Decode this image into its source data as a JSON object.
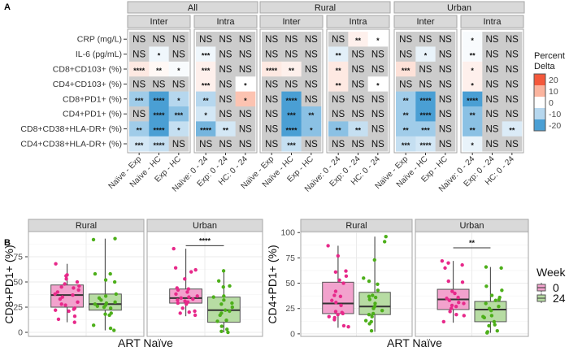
{
  "panel_labels": {
    "a": "A",
    "b": "B"
  },
  "colors": {
    "ns": "#cccccc",
    "neg20": "#4a9fd4",
    "neg10": "#b6d7ee",
    "zero": "#ffffff",
    "pos10": "#fbb49e",
    "pos20": "#f4583b",
    "week0_point": "#e7298a",
    "week0_box": "#f2a2cd",
    "week24_point": "#4daf1a",
    "week24_box": "#b7dca3"
  },
  "chart_data": [
    {
      "type": "heatmap",
      "title": "",
      "rows": [
        "CRP (mg/L)",
        "IL-6 (pg/mL)",
        "CD8+CD103+ (%)",
        "CD4+CD103+ (%)",
        "CD8+PD1+ (%)",
        "CD4+PD1+ (%)",
        "CD8+CD38+HLA-DR+ (%)",
        "CD4+CD38+HLA-DR+ (%)"
      ],
      "legend": {
        "title_line1": "Percent",
        "title_line2": "Delta",
        "ticks": [
          "20",
          "10",
          "0",
          "-10",
          "-20"
        ],
        "placement": "right"
      },
      "facets": [
        {
          "name": "All",
          "groups": [
            {
              "name": "Inter",
              "columns": [
                "Naïve - Exp",
                "Naïve - HC",
                "Exp - HC"
              ],
              "sig": [
                [
                  "NS",
                  "NS",
                  "NS"
                ],
                [
                  "NS",
                  "*",
                  "NS"
                ],
                [
                  "****",
                  "**",
                  "*"
                ],
                [
                  "NS",
                  "NS",
                  "NS"
                ],
                [
                  "***",
                  "****",
                  "*"
                ],
                [
                  "NS",
                  "****",
                  "***"
                ],
                [
                  "**",
                  "****",
                  "*"
                ],
                [
                  "***",
                  "****",
                  "NS"
                ]
              ],
              "delta": [
                [
                  null,
                  null,
                  null
                ],
                [
                  null,
                  -2,
                  null
                ],
                [
                  3,
                  1,
                  -1
                ],
                [
                  null,
                  null,
                  null
                ],
                [
                  -12,
                  -22,
                  -10
                ],
                [
                  null,
                  -22,
                  -14
                ],
                [
                  -12,
                  -22,
                  -8
                ],
                [
                  -6,
                  -8,
                  null
                ]
              ]
            },
            {
              "name": "Intra",
              "columns": [
                "Naïve: 0 - 24",
                "Exp: 0 - 24",
                "HC: 0 - 24"
              ],
              "sig": [
                [
                  "NS",
                  "NS",
                  "NS"
                ],
                [
                  "***",
                  "NS",
                  "NS"
                ],
                [
                  "***",
                  "NS",
                  "NS"
                ],
                [
                  "***",
                  "NS",
                  "*"
                ],
                [
                  "**",
                  "NS",
                  "*"
                ],
                [
                  "*",
                  "NS",
                  "NS"
                ],
                [
                  "****",
                  "**",
                  "NS"
                ],
                [
                  "NS",
                  "NS",
                  "NS"
                ]
              ],
              "delta": [
                [
                  null,
                  null,
                  null
                ],
                [
                  -2,
                  null,
                  null
                ],
                [
                  2,
                  null,
                  null
                ],
                [
                  2,
                  null,
                  0
                ],
                [
                  -10,
                  null,
                  8
                ],
                [
                  -6,
                  null,
                  null
                ],
                [
                  -16,
                  -6,
                  null
                ],
                [
                  null,
                  null,
                  null
                ]
              ]
            }
          ]
        },
        {
          "name": "Rural",
          "groups": [
            {
              "name": "Inter",
              "columns": [
                "Naïve - Exp",
                "Naïve - HC",
                "Exp - HC"
              ],
              "sig": [
                [
                  "NS",
                  "NS",
                  "NS"
                ],
                [
                  "NS",
                  "NS",
                  "NS"
                ],
                [
                  "****",
                  "**",
                  "NS"
                ],
                [
                  "NS",
                  "NS",
                  "NS"
                ],
                [
                  "NS",
                  "****",
                  "NS"
                ],
                [
                  "NS",
                  "***",
                  "**"
                ],
                [
                  "NS",
                  "****",
                  "*"
                ],
                [
                  "NS",
                  "***",
                  "NS"
                ]
              ],
              "delta": [
                [
                  null,
                  null,
                  null
                ],
                [
                  null,
                  null,
                  null
                ],
                [
                  3,
                  2,
                  null
                ],
                [
                  null,
                  null,
                  null
                ],
                [
                  null,
                  -22,
                  null
                ],
                [
                  null,
                  -22,
                  -14
                ],
                [
                  null,
                  -22,
                  -14
                ],
                [
                  null,
                  -8,
                  null
                ]
              ]
            },
            {
              "name": "Intra",
              "columns": [
                "Naïve: 0 - 24",
                "Exp: 0 - 24",
                "HC: 0 - 24"
              ],
              "sig": [
                [
                  "NS",
                  "**",
                  "*"
                ],
                [
                  "**",
                  "NS",
                  "NS"
                ],
                [
                  "**",
                  "NS",
                  "NS"
                ],
                [
                  "**",
                  "NS",
                  "*"
                ],
                [
                  "NS",
                  "NS",
                  "NS"
                ],
                [
                  "NS",
                  "NS",
                  "NS"
                ],
                [
                  "**",
                  "**",
                  "NS"
                ],
                [
                  "NS",
                  "NS",
                  "NS"
                ]
              ],
              "delta": [
                [
                  null,
                  2,
                  0
                ],
                [
                  -4,
                  null,
                  null
                ],
                [
                  3,
                  null,
                  null
                ],
                [
                  3,
                  null,
                  0
                ],
                [
                  null,
                  null,
                  null
                ],
                [
                  null,
                  null,
                  null
                ],
                [
                  -14,
                  -8,
                  null
                ],
                [
                  null,
                  null,
                  null
                ]
              ]
            }
          ]
        },
        {
          "name": "Urban",
          "groups": [
            {
              "name": "Inter",
              "columns": [
                "Naïve - Exp",
                "Naïve - HC",
                "Exp - HC"
              ],
              "sig": [
                [
                  "NS",
                  "NS",
                  "NS"
                ],
                [
                  "NS",
                  "*",
                  "NS"
                ],
                [
                  "***",
                  "NS",
                  "NS"
                ],
                [
                  "NS",
                  "NS",
                  "NS"
                ],
                [
                  "**",
                  "****",
                  "NS"
                ],
                [
                  "**",
                  "****",
                  "NS"
                ],
                [
                  "**",
                  "***",
                  "NS"
                ],
                [
                  "***",
                  "****",
                  "NS"
                ]
              ],
              "delta": [
                [
                  null,
                  null,
                  null
                ],
                [
                  null,
                  -3,
                  null
                ],
                [
                  4,
                  null,
                  null
                ],
                [
                  null,
                  null,
                  null
                ],
                [
                  -12,
                  -20,
                  null
                ],
                [
                  -12,
                  -22,
                  null
                ],
                [
                  -12,
                  -12,
                  null
                ],
                [
                  -8,
                  -6,
                  null
                ]
              ]
            },
            {
              "name": "Intra",
              "columns": [
                "Naïve: 0 - 24",
                "Exp: 0 - 24",
                "HC: 0 - 24"
              ],
              "sig": [
                [
                  "*",
                  "NS",
                  "NS"
                ],
                [
                  "**",
                  "NS",
                  "NS"
                ],
                [
                  "*",
                  "NS",
                  "NS"
                ],
                [
                  "*",
                  "NS",
                  "NS"
                ],
                [
                  "****",
                  "NS",
                  "NS"
                ],
                [
                  "**",
                  "NS",
                  "NS"
                ],
                [
                  "**",
                  "NS",
                  "**"
                ],
                [
                  "*",
                  "NS",
                  "NS"
                ]
              ],
              "delta": [
                [
                  -1,
                  null,
                  null
                ],
                [
                  -1,
                  null,
                  null
                ],
                [
                  2,
                  null,
                  null
                ],
                [
                  2,
                  null,
                  null
                ],
                [
                  -20,
                  null,
                  null
                ],
                [
                  -14,
                  null,
                  null
                ],
                [
                  -14,
                  null,
                  -5
                ],
                [
                  -3,
                  null,
                  null
                ]
              ]
            }
          ]
        }
      ]
    },
    {
      "type": "box",
      "ylabel": "CD8+PD1+ (%)",
      "xlabel": "ART Naïve",
      "ylim": [
        -4,
        100
      ],
      "yticks": [
        "0",
        "25",
        "50",
        "75"
      ],
      "ytick_values": [
        0,
        25,
        50,
        75
      ],
      "facets": [
        {
          "name": "Rural",
          "significance": "",
          "boxes": [
            {
              "week": "0",
              "whisker_low": 10,
              "q1": 25,
              "median": 37,
              "q3": 47,
              "whisker_high": 68,
              "points": [
                68,
                57,
                56,
                53,
                50,
                48,
                46,
                45,
                44,
                42,
                40,
                38,
                37,
                35,
                33,
                30,
                28,
                27,
                24,
                23,
                22,
                21,
                16,
                13,
                10
              ]
            },
            {
              "week": "24",
              "whisker_low": 2,
              "q1": 22,
              "median": 28,
              "q3": 38,
              "whisker_high": 93,
              "points": [
                93,
                92,
                58,
                58,
                52,
                50,
                38,
                36,
                34,
                32,
                30,
                29,
                28,
                27,
                26,
                25,
                24,
                19,
                18,
                17,
                7,
                4,
                2
              ]
            }
          ]
        },
        {
          "name": "Urban",
          "significance": "****",
          "sig_y": 86,
          "boxes": [
            {
              "week": "0",
              "whisker_low": 16,
              "q1": 29,
              "median": 34,
              "q3": 43,
              "whisker_high": 83,
              "points": [
                83,
                64,
                62,
                60,
                53,
                44,
                43,
                42,
                40,
                38,
                36,
                35,
                34,
                33,
                32,
                31,
                30,
                29,
                28,
                24,
                21,
                20,
                19,
                17
              ]
            },
            {
              "week": "24",
              "whisker_low": 0,
              "q1": 10,
              "median": 22,
              "q3": 35,
              "whisker_high": 61,
              "points": [
                61,
                51,
                46,
                45,
                36,
                35,
                32,
                29,
                28,
                25,
                22,
                21,
                19,
                17,
                12,
                11,
                6,
                3,
                1,
                0
              ]
            }
          ]
        }
      ]
    },
    {
      "type": "box",
      "ylabel": "CD4+PD1+ (%)",
      "xlabel": "ART Naïve",
      "ylim": [
        -2.5,
        101
      ],
      "yticks": [
        "0",
        "25",
        "50",
        "75",
        "100"
      ],
      "ytick_values": [
        0,
        25,
        50,
        75,
        100
      ],
      "facets": [
        {
          "name": "Rural",
          "significance": "",
          "boxes": [
            {
              "week": "0",
              "whisker_low": 6,
              "q1": 20,
              "median": 30,
              "q3": 51,
              "whisker_high": 87,
              "points": [
                87,
                77,
                62,
                61,
                57,
                53,
                50,
                42,
                38,
                37,
                33,
                31,
                28,
                22,
                21,
                20,
                19,
                17,
                16,
                14,
                8,
                7
              ]
            },
            {
              "week": "24",
              "whisker_low": 2,
              "q1": 19,
              "median": 27,
              "q3": 41,
              "whisker_high": 96,
              "points": [
                96,
                91,
                73,
                55,
                52,
                49,
                43,
                38,
                37,
                36,
                34,
                30,
                27,
                25,
                23,
                20,
                19,
                17,
                13,
                12,
                10,
                3
              ]
            }
          ]
        },
        {
          "name": "Urban",
          "significance": "**",
          "sig_y": 85,
          "boxes": [
            {
              "week": "0",
              "whisker_low": 11,
              "q1": 24,
              "median": 34,
              "q3": 44,
              "whisker_high": 72,
              "points": [
                72,
                70,
                68,
                65,
                52,
                51,
                42,
                40,
                36,
                35,
                33,
                31,
                30,
                28,
                27,
                25,
                22,
                19,
                18,
                12
              ]
            },
            {
              "week": "24",
              "whisker_low": 1,
              "q1": 12,
              "median": 24,
              "q3": 32,
              "whisker_high": 66,
              "points": [
                66,
                65,
                47,
                43,
                38,
                36,
                34,
                33,
                30,
                27,
                25,
                23,
                18,
                17,
                16,
                12,
                9,
                8,
                3,
                2,
                1
              ]
            }
          ]
        }
      ]
    }
  ],
  "week_legend": {
    "title": "Week",
    "entries": [
      "0",
      "24"
    ]
  }
}
